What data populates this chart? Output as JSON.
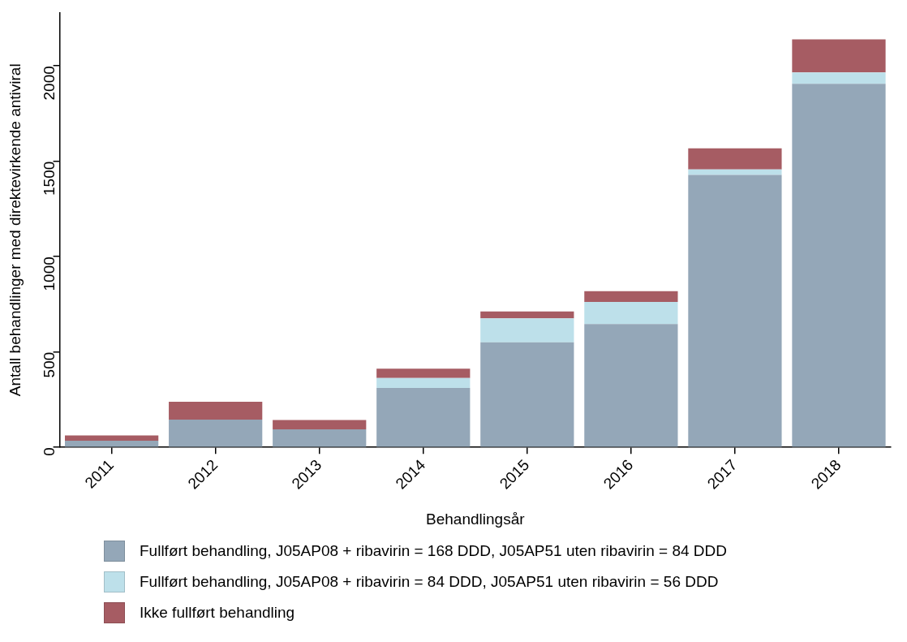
{
  "chart_data": {
    "type": "bar",
    "stacked": true,
    "xlabel": "Behandlingsår",
    "ylabel": "Antall behandlinger med direktevirkende antiviral",
    "categories": [
      "2011",
      "2012",
      "2013",
      "2014",
      "2015",
      "2016",
      "2017",
      "2018"
    ],
    "series": [
      {
        "name": "Fullført behandling, J05AP08 + ribavirin = 168 DDD, J05AP51 uten ribavirin = 84 DDD",
        "color": "#94a7b8",
        "values": [
          35,
          146,
          94,
          311,
          551,
          647,
          1428,
          1906
        ]
      },
      {
        "name": "Fullført behandling, J05AP08 + ribavirin = 84 DDD, J05AP51 uten ribavirin = 56 DDD",
        "color": "#bde0ea",
        "values": [
          0,
          0,
          0,
          53,
          125,
          115,
          29,
          60
        ]
      },
      {
        "name": "Ikke fullført behandling",
        "color": "#a65c63",
        "values": [
          28,
          93,
          49,
          48,
          37,
          57,
          111,
          173
        ]
      }
    ],
    "ylim": [
      0,
      2280
    ],
    "yticks": [
      0,
      500,
      1000,
      1500,
      2000
    ],
    "grid": false,
    "legend": "bottom"
  }
}
